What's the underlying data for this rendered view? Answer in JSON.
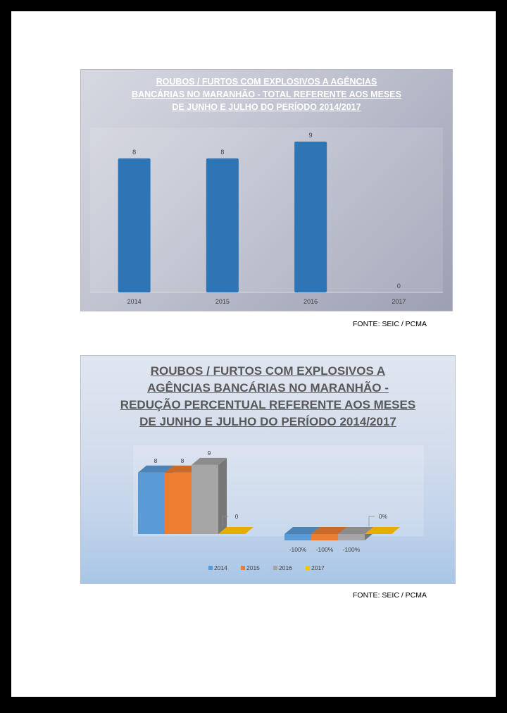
{
  "chart_data": [
    {
      "type": "bar",
      "title": "ROUBOS / FURTOS COM EXPLOSIVOS A AGÊNCIAS BANCÁRIAS NO MARANHÃO - TOTAL REFERENTE AOS MESES DE JUNHO E JULHO DO PERÍODO 2014/2017",
      "title_lines": [
        "ROUBOS / FURTOS COM EXPLOSIVOS A AGÊNCIAS",
        "BANCÁRIAS NO MARANHÃO - TOTAL REFERENTE AOS MESES",
        "DE JUNHO E JULHO DO PERÍODO 2014/2017"
      ],
      "categories": [
        "2014",
        "2015",
        "2016",
        "2017"
      ],
      "values": [
        8,
        8,
        9,
        0
      ],
      "data_labels": [
        "8",
        "8",
        "9",
        "0"
      ],
      "xlabel": "",
      "ylabel": "",
      "ylim": [
        0,
        9
      ],
      "grid": false,
      "legend": "none",
      "bar_color": "#2e75b6"
    },
    {
      "type": "bar",
      "subtype": "3d-clustered",
      "title": "ROUBOS / FURTOS COM EXPLOSIVOS A AGÊNCIAS BANCÁRIAS NO MARANHÃO - REDUÇÃO PERCENTUAL REFERENTE AOS MESES DE JUNHO E JULHO DO PERÍODO 2014/2017",
      "title_lines": [
        "ROUBOS / FURTOS COM EXPLOSIVOS A",
        "AGÊNCIAS BANCÁRIAS NO MARANHÃO -",
        "REDUÇÃO PERCENTUAL REFERENTE AOS MESES",
        "DE JUNHO E JULHO DO PERÍODO 2014/2017"
      ],
      "groups": [
        {
          "values": [
            8,
            8,
            9,
            0
          ],
          "labels": [
            "8",
            "8",
            "9",
            "0"
          ]
        },
        {
          "values": [
            -1,
            -1,
            -1,
            0
          ],
          "labels": [
            "-100%",
            "-100%",
            "-100%",
            "0%"
          ]
        }
      ],
      "series": [
        {
          "name": "2014",
          "color": "#5b9bd5"
        },
        {
          "name": "2015",
          "color": "#ed7d31"
        },
        {
          "name": "2016",
          "color": "#a5a5a5"
        },
        {
          "name": "2017",
          "color": "#ffc000"
        }
      ],
      "legend": "bottom",
      "grid": false
    }
  ],
  "sources": [
    "FONTE: SEIC / PCMA",
    "FONTE: SEIC / PCMA"
  ]
}
